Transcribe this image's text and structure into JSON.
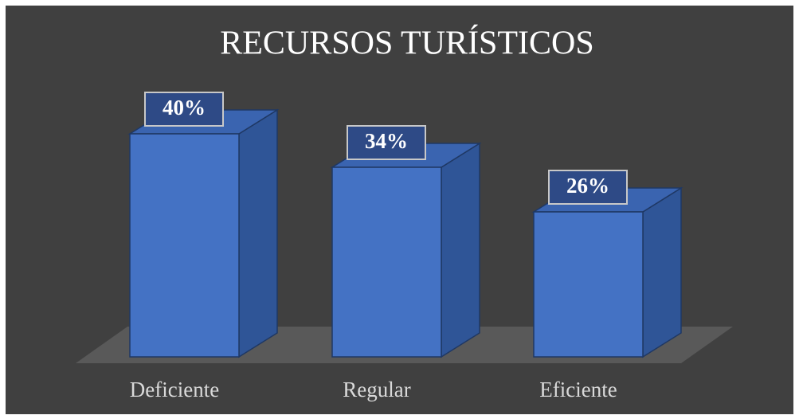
{
  "chart_data": {
    "type": "bar3d",
    "title": "RECURSOS TURÍSTICOS",
    "categories": [
      "Deficiente",
      "Regular",
      "Eficiente"
    ],
    "values": [
      40,
      34,
      26
    ],
    "value_labels": [
      "40%",
      "34%",
      "26%"
    ],
    "color": "#4472c4"
  }
}
